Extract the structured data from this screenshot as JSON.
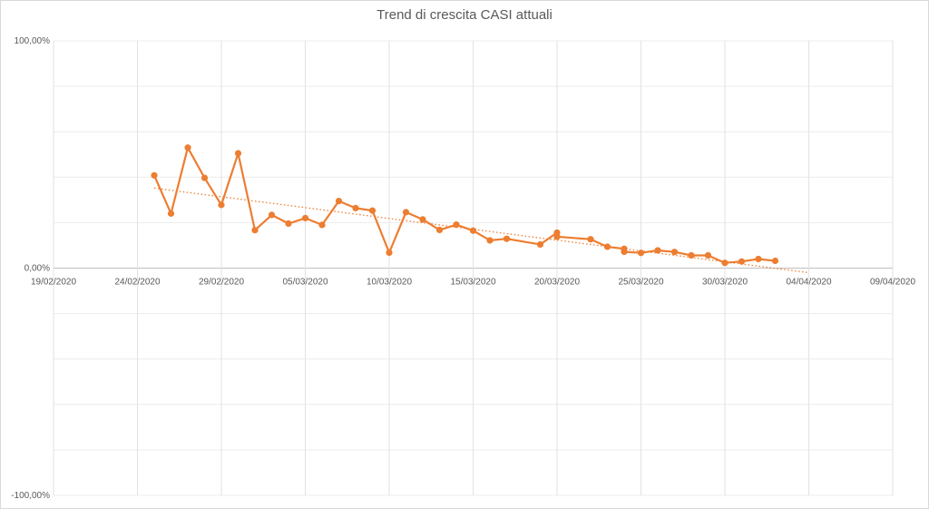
{
  "chart_data": {
    "type": "line",
    "title": "Trend di crescita CASI attuali",
    "xlabel": "",
    "ylabel": "",
    "x_range": [
      "19/02/2020",
      "09/04/2020"
    ],
    "ylim": [
      -100,
      100
    ],
    "y_ticks": [
      "100,00%",
      "0,00%",
      "-100,00%"
    ],
    "x_ticks": [
      "19/02/2020",
      "24/02/2020",
      "29/02/2020",
      "05/03/2020",
      "10/03/2020",
      "15/03/2020",
      "20/03/2020",
      "25/03/2020",
      "30/03/2020",
      "04/04/2020",
      "09/04/2020"
    ],
    "grid": true,
    "legend": "none",
    "series": [
      {
        "color": "#ed7d31",
        "points": [
          {
            "x": "25/02/2020",
            "y": 40.8
          },
          {
            "x": "26/02/2020",
            "y": 24.0
          },
          {
            "x": "27/02/2020",
            "y": 53.0
          },
          {
            "x": "28/02/2020",
            "y": 39.7
          },
          {
            "x": "29/02/2020",
            "y": 27.8
          },
          {
            "x": "01/03/2020",
            "y": 50.5
          },
          {
            "x": "02/03/2020",
            "y": 16.7
          },
          {
            "x": "03/03/2020",
            "y": 23.4
          },
          {
            "x": "04/03/2020",
            "y": 19.6
          },
          {
            "x": "05/03/2020",
            "y": 22.0
          },
          {
            "x": "06/03/2020",
            "y": 19.0
          },
          {
            "x": "07/03/2020",
            "y": 29.5
          },
          {
            "x": "08/03/2020",
            "y": 26.4
          },
          {
            "x": "09/03/2020",
            "y": 25.3
          },
          {
            "x": "10/03/2020",
            "y": 6.8
          },
          {
            "x": "11/03/2020",
            "y": 24.6
          },
          {
            "x": "12/03/2020",
            "y": 21.4
          },
          {
            "x": "13/03/2020",
            "y": 16.8
          },
          {
            "x": "14/03/2020",
            "y": 19.1
          },
          {
            "x": "15/03/2020",
            "y": 16.5
          },
          {
            "x": "16/03/2020",
            "y": 12.2
          },
          {
            "x": "17/03/2020",
            "y": 12.9
          },
          {
            "x": "19/03/2020",
            "y": 10.4
          },
          {
            "x": "20/03/2020",
            "y": 15.6
          },
          {
            "x": "20/03/2020",
            "y": 13.8
          },
          {
            "x": "22/03/2020",
            "y": 12.7
          },
          {
            "x": "23/03/2020",
            "y": 9.4
          },
          {
            "x": "24/03/2020",
            "y": 8.5
          },
          {
            "x": "24/03/2020",
            "y": 7.2
          },
          {
            "x": "25/03/2020",
            "y": 6.7
          },
          {
            "x": "26/03/2020",
            "y": 7.8
          },
          {
            "x": "27/03/2020",
            "y": 7.1
          },
          {
            "x": "28/03/2020",
            "y": 5.6
          },
          {
            "x": "29/03/2020",
            "y": 5.6
          },
          {
            "x": "30/03/2020",
            "y": 2.3
          },
          {
            "x": "31/03/2020",
            "y": 2.9
          },
          {
            "x": "01/04/2020",
            "y": 4.0
          },
          {
            "x": "02/04/2020",
            "y": 3.2
          }
        ]
      }
    ],
    "trendline": {
      "style": "dotted linear",
      "color": "#ed7d31",
      "from": {
        "x": "25/02/2020",
        "y": 35.2
      },
      "to": {
        "x": "04/04/2020",
        "y": -2.0
      }
    }
  }
}
